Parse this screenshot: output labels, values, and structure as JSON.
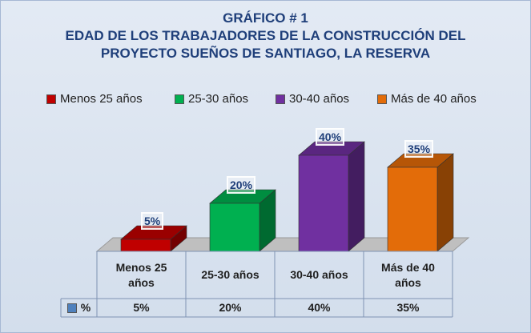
{
  "chart_data": {
    "type": "bar3d",
    "title": [
      "GRÁFICO # 1",
      "EDAD DE LOS TRABAJADORES DE LA CONSTRUCCIÓN DEL",
      "PROYECTO SUEÑOS DE SANTIAGO, LA RESERVA"
    ],
    "series_name": "%",
    "series_color": "#4f81bd",
    "categories": [
      "Menos 25 años",
      "25-30 años",
      "30-40 años",
      "Más de 40 años"
    ],
    "values": [
      5,
      20,
      40,
      35
    ],
    "value_labels": [
      "5%",
      "20%",
      "40%",
      "35%"
    ],
    "colors": [
      "#c00000",
      "#00b050",
      "#7030a0",
      "#e36c09"
    ],
    "legend": "top",
    "data_table": true
  }
}
